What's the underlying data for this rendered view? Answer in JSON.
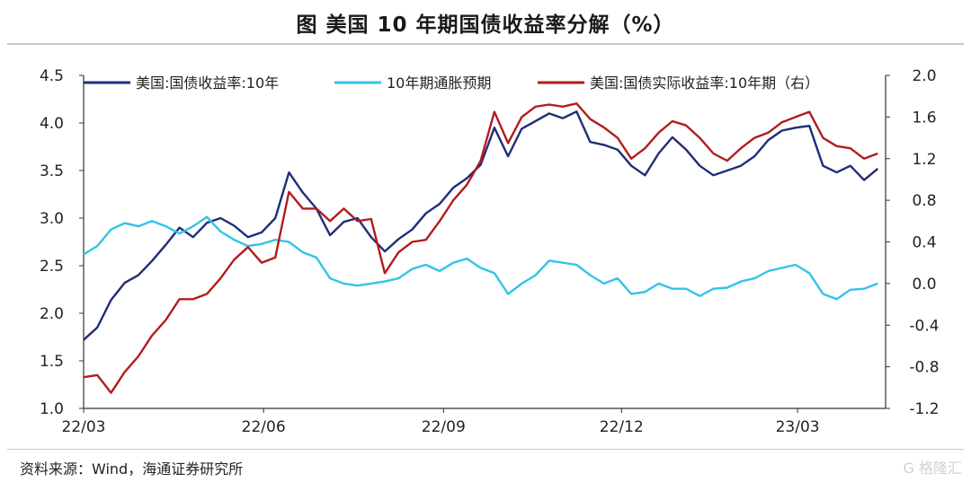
{
  "title": "图  美国 10 年期国债收益率分解（%）",
  "source": "资料来源：Wind，海通证券研究所",
  "watermark": "G 格隆汇",
  "chart_data": {
    "type": "line",
    "x_ticks": [
      "22/03",
      "22/06",
      "22/09",
      "22/12",
      "23/03"
    ],
    "x_tick_dates": [
      "2022-03-01",
      "2022-06-01",
      "2022-09-01",
      "2022-12-01",
      "2023-03-01"
    ],
    "x_range": [
      "2022-03-01",
      "2023-04-15"
    ],
    "y_left": {
      "range": [
        1.0,
        4.5
      ],
      "ticks": [
        "1.0",
        "1.5",
        "2.0",
        "2.5",
        "3.0",
        "3.5",
        "4.0",
        "4.5"
      ]
    },
    "y_right": {
      "range": [
        -1.2,
        2.0
      ],
      "ticks": [
        "-1.2",
        "-0.8",
        "-0.4",
        "0.0",
        "0.4",
        "0.8",
        "1.2",
        "1.6",
        "2.0"
      ]
    },
    "grid": false,
    "legend_position": "top",
    "series": [
      {
        "name": "美国:国债收益率:10年",
        "axis": "left",
        "color": "#1f2d7a",
        "points": [
          [
            "2022-03-01",
            1.72
          ],
          [
            "2022-03-08",
            1.85
          ],
          [
            "2022-03-15",
            2.14
          ],
          [
            "2022-03-22",
            2.32
          ],
          [
            "2022-03-29",
            2.4
          ],
          [
            "2022-04-05",
            2.55
          ],
          [
            "2022-04-12",
            2.72
          ],
          [
            "2022-04-19",
            2.9
          ],
          [
            "2022-04-26",
            2.8
          ],
          [
            "2022-05-03",
            2.95
          ],
          [
            "2022-05-10",
            3.0
          ],
          [
            "2022-05-17",
            2.92
          ],
          [
            "2022-05-24",
            2.8
          ],
          [
            "2022-05-31",
            2.85
          ],
          [
            "2022-06-07",
            3.0
          ],
          [
            "2022-06-14",
            3.48
          ],
          [
            "2022-06-21",
            3.27
          ],
          [
            "2022-06-28",
            3.1
          ],
          [
            "2022-07-05",
            2.82
          ],
          [
            "2022-07-12",
            2.96
          ],
          [
            "2022-07-19",
            3.0
          ],
          [
            "2022-07-26",
            2.8
          ],
          [
            "2022-08-02",
            2.65
          ],
          [
            "2022-08-09",
            2.78
          ],
          [
            "2022-08-16",
            2.88
          ],
          [
            "2022-08-23",
            3.05
          ],
          [
            "2022-08-30",
            3.15
          ],
          [
            "2022-09-06",
            3.32
          ],
          [
            "2022-09-13",
            3.42
          ],
          [
            "2022-09-20",
            3.56
          ],
          [
            "2022-09-27",
            3.95
          ],
          [
            "2022-10-04",
            3.65
          ],
          [
            "2022-10-11",
            3.94
          ],
          [
            "2022-10-18",
            4.02
          ],
          [
            "2022-10-25",
            4.1
          ],
          [
            "2022-11-01",
            4.05
          ],
          [
            "2022-11-08",
            4.12
          ],
          [
            "2022-11-15",
            3.8
          ],
          [
            "2022-11-22",
            3.77
          ],
          [
            "2022-11-29",
            3.72
          ],
          [
            "2022-12-06",
            3.55
          ],
          [
            "2022-12-13",
            3.45
          ],
          [
            "2022-12-20",
            3.68
          ],
          [
            "2022-12-27",
            3.85
          ],
          [
            "2023-01-03",
            3.72
          ],
          [
            "2023-01-10",
            3.55
          ],
          [
            "2023-01-17",
            3.45
          ],
          [
            "2023-01-24",
            3.5
          ],
          [
            "2023-01-31",
            3.55
          ],
          [
            "2023-02-07",
            3.65
          ],
          [
            "2023-02-14",
            3.82
          ],
          [
            "2023-02-21",
            3.92
          ],
          [
            "2023-02-28",
            3.95
          ],
          [
            "2023-03-07",
            3.97
          ],
          [
            "2023-03-14",
            3.55
          ],
          [
            "2023-03-21",
            3.48
          ],
          [
            "2023-03-28",
            3.55
          ],
          [
            "2023-04-04",
            3.4
          ],
          [
            "2023-04-11",
            3.52
          ]
        ]
      },
      {
        "name": "10年期通胀预期",
        "axis": "right",
        "color": "#33c3e8",
        "points": [
          [
            "2022-03-01",
            0.28
          ],
          [
            "2022-03-08",
            0.36
          ],
          [
            "2022-03-15",
            0.52
          ],
          [
            "2022-03-22",
            0.58
          ],
          [
            "2022-03-29",
            0.55
          ],
          [
            "2022-04-05",
            0.6
          ],
          [
            "2022-04-12",
            0.55
          ],
          [
            "2022-04-19",
            0.48
          ],
          [
            "2022-04-26",
            0.55
          ],
          [
            "2022-05-03",
            0.64
          ],
          [
            "2022-05-10",
            0.5
          ],
          [
            "2022-05-17",
            0.42
          ],
          [
            "2022-05-24",
            0.36
          ],
          [
            "2022-05-31",
            0.38
          ],
          [
            "2022-06-07",
            0.42
          ],
          [
            "2022-06-14",
            0.4
          ],
          [
            "2022-06-21",
            0.3
          ],
          [
            "2022-06-28",
            0.25
          ],
          [
            "2022-07-05",
            0.05
          ],
          [
            "2022-07-12",
            0.0
          ],
          [
            "2022-07-19",
            -0.02
          ],
          [
            "2022-07-26",
            0.0
          ],
          [
            "2022-08-02",
            0.02
          ],
          [
            "2022-08-09",
            0.05
          ],
          [
            "2022-08-16",
            0.14
          ],
          [
            "2022-08-23",
            0.18
          ],
          [
            "2022-08-30",
            0.12
          ],
          [
            "2022-09-06",
            0.2
          ],
          [
            "2022-09-13",
            0.24
          ],
          [
            "2022-09-20",
            0.15
          ],
          [
            "2022-09-27",
            0.1
          ],
          [
            "2022-10-04",
            -0.1
          ],
          [
            "2022-10-11",
            0.0
          ],
          [
            "2022-10-18",
            0.08
          ],
          [
            "2022-10-25",
            0.22
          ],
          [
            "2022-11-01",
            0.2
          ],
          [
            "2022-11-08",
            0.18
          ],
          [
            "2022-11-15",
            0.08
          ],
          [
            "2022-11-22",
            0.0
          ],
          [
            "2022-11-29",
            0.05
          ],
          [
            "2022-12-06",
            -0.1
          ],
          [
            "2022-12-13",
            -0.08
          ],
          [
            "2022-12-20",
            0.0
          ],
          [
            "2022-12-27",
            -0.05
          ],
          [
            "2023-01-03",
            -0.05
          ],
          [
            "2023-01-10",
            -0.12
          ],
          [
            "2023-01-17",
            -0.05
          ],
          [
            "2023-01-24",
            -0.04
          ],
          [
            "2023-01-31",
            0.02
          ],
          [
            "2023-02-07",
            0.05
          ],
          [
            "2023-02-14",
            0.12
          ],
          [
            "2023-02-21",
            0.15
          ],
          [
            "2023-02-28",
            0.18
          ],
          [
            "2023-03-07",
            0.1
          ],
          [
            "2023-03-14",
            -0.1
          ],
          [
            "2023-03-21",
            -0.15
          ],
          [
            "2023-03-28",
            -0.06
          ],
          [
            "2023-04-04",
            -0.05
          ],
          [
            "2023-04-11",
            0.0
          ]
        ]
      },
      {
        "name": "美国:国债实际收益率:10年期（右）",
        "axis": "right",
        "color": "#b21c1c",
        "points": [
          [
            "2022-03-01",
            -0.9
          ],
          [
            "2022-03-08",
            -0.88
          ],
          [
            "2022-03-15",
            -1.05
          ],
          [
            "2022-03-22",
            -0.85
          ],
          [
            "2022-03-29",
            -0.7
          ],
          [
            "2022-04-05",
            -0.5
          ],
          [
            "2022-04-12",
            -0.35
          ],
          [
            "2022-04-19",
            -0.15
          ],
          [
            "2022-04-26",
            -0.15
          ],
          [
            "2022-05-03",
            -0.1
          ],
          [
            "2022-05-10",
            0.05
          ],
          [
            "2022-05-17",
            0.23
          ],
          [
            "2022-05-24",
            0.35
          ],
          [
            "2022-05-31",
            0.2
          ],
          [
            "2022-06-07",
            0.25
          ],
          [
            "2022-06-14",
            0.88
          ],
          [
            "2022-06-21",
            0.72
          ],
          [
            "2022-06-28",
            0.72
          ],
          [
            "2022-07-05",
            0.6
          ],
          [
            "2022-07-12",
            0.72
          ],
          [
            "2022-07-19",
            0.6
          ],
          [
            "2022-07-26",
            0.62
          ],
          [
            "2022-08-02",
            0.1
          ],
          [
            "2022-08-09",
            0.3
          ],
          [
            "2022-08-16",
            0.4
          ],
          [
            "2022-08-23",
            0.42
          ],
          [
            "2022-08-30",
            0.6
          ],
          [
            "2022-09-06",
            0.8
          ],
          [
            "2022-09-13",
            0.95
          ],
          [
            "2022-09-20",
            1.18
          ],
          [
            "2022-09-27",
            1.65
          ],
          [
            "2022-10-04",
            1.35
          ],
          [
            "2022-10-11",
            1.6
          ],
          [
            "2022-10-18",
            1.7
          ],
          [
            "2022-10-25",
            1.72
          ],
          [
            "2022-11-01",
            1.7
          ],
          [
            "2022-11-08",
            1.73
          ],
          [
            "2022-11-15",
            1.58
          ],
          [
            "2022-11-22",
            1.5
          ],
          [
            "2022-11-29",
            1.4
          ],
          [
            "2022-12-06",
            1.2
          ],
          [
            "2022-12-13",
            1.3
          ],
          [
            "2022-12-20",
            1.45
          ],
          [
            "2022-12-27",
            1.56
          ],
          [
            "2023-01-03",
            1.52
          ],
          [
            "2023-01-10",
            1.4
          ],
          [
            "2023-01-17",
            1.25
          ],
          [
            "2023-01-24",
            1.18
          ],
          [
            "2023-01-31",
            1.3
          ],
          [
            "2023-02-07",
            1.4
          ],
          [
            "2023-02-14",
            1.45
          ],
          [
            "2023-02-21",
            1.55
          ],
          [
            "2023-02-28",
            1.6
          ],
          [
            "2023-03-07",
            1.65
          ],
          [
            "2023-03-14",
            1.4
          ],
          [
            "2023-03-21",
            1.32
          ],
          [
            "2023-03-28",
            1.3
          ],
          [
            "2023-04-04",
            1.2
          ],
          [
            "2023-04-11",
            1.25
          ]
        ]
      }
    ]
  }
}
